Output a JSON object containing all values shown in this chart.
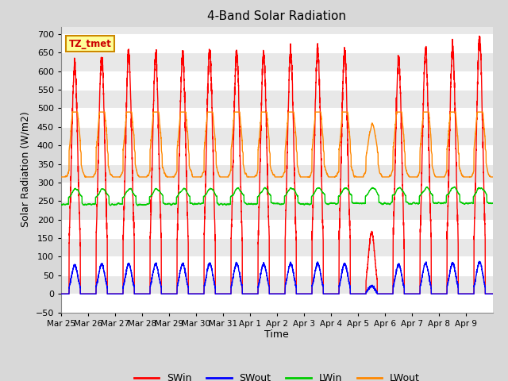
{
  "title": "4-Band Solar Radiation",
  "xlabel": "Time",
  "ylabel": "Solar Radiation (W/m2)",
  "ylim": [
    -50,
    720
  ],
  "yticks": [
    -50,
    0,
    50,
    100,
    150,
    200,
    250,
    300,
    350,
    400,
    450,
    500,
    550,
    600,
    650,
    700
  ],
  "bg_color": "#d8d8d8",
  "plot_bg_color": "#e8e8e8",
  "grid_color": "#ffffff",
  "annotation_text": "TZ_tmet",
  "annotation_bg": "#ffff99",
  "annotation_border": "#cc8800",
  "colors": {
    "SWin": "#ff0000",
    "SWout": "#0000ff",
    "LWin": "#00cc00",
    "LWout": "#ff8800"
  },
  "n_days": 16,
  "points_per_day": 288,
  "day_labels": [
    "Mar 25",
    "Mar 26",
    "Mar 27",
    "Mar 28",
    "Mar 29",
    "Mar 30",
    "Mar 31",
    "Apr 1",
    "Apr 2",
    "Apr 3",
    "Apr 4",
    "Apr 5",
    "Apr 6",
    "Apr 7",
    "Apr 8",
    "Apr 9"
  ]
}
